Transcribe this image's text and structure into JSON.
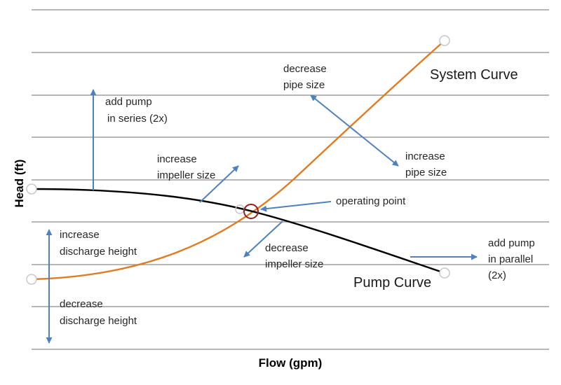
{
  "chart_data": {
    "type": "line",
    "xlabel": "Flow (gpm)",
    "ylabel": "Head (ft)",
    "grid": true,
    "series": [
      {
        "name": "System Curve",
        "color": "#e07b21"
      },
      {
        "name": "Pump Curve",
        "color": "#000000"
      }
    ],
    "operating_point_label": "operating point",
    "annotations": {
      "add_series_1": "add pump",
      "add_series_2": "in series (2x)",
      "increase_impeller_1": "increase",
      "increase_impeller_2": "impeller size",
      "decrease_pipe_1": "decrease",
      "decrease_pipe_2": "pipe size",
      "increase_pipe_1": "increase",
      "increase_pipe_2": "pipe size",
      "decrease_impeller_1": "decrease",
      "decrease_impeller_2": "impeller size",
      "add_parallel_1": "add pump",
      "add_parallel_2": "in parallel",
      "add_parallel_3": "(2x)",
      "increase_discharge_1": "increase",
      "increase_discharge_2": "discharge height",
      "decrease_discharge_1": "decrease",
      "decrease_discharge_2": "discharge height"
    },
    "colors": {
      "arrow": "#4f81bd",
      "grid": "#8c8c8c",
      "operating_point": "#9b1c1c",
      "endpoint_marker": "#c8c8c8"
    }
  }
}
